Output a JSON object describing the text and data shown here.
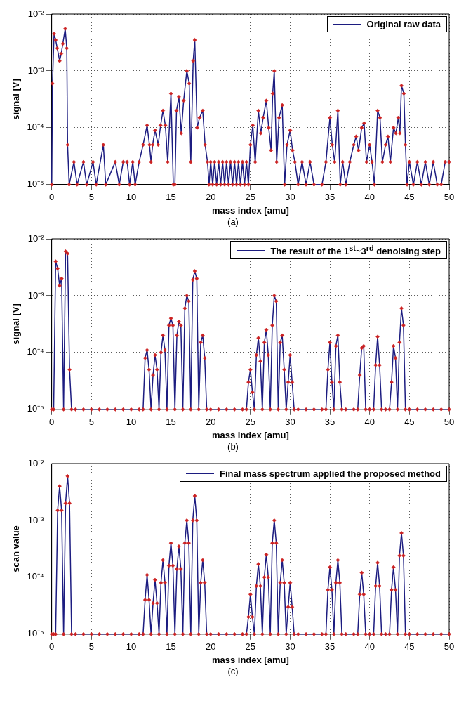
{
  "chart_data": [
    {
      "type": "line",
      "xlabel": "mass index [amu]",
      "ylabel": "signal [V]",
      "annotations": [
        "(a)"
      ],
      "log": "y",
      "grid": true,
      "legend": "top right",
      "marker": "diamond",
      "line_style": "solid",
      "xlim": [
        0,
        50
      ],
      "xticks": [
        0,
        5,
        10,
        15,
        20,
        25,
        30,
        35,
        40,
        45,
        50
      ],
      "ylim": [
        1e-05,
        0.01
      ],
      "yticks": [
        {
          "value": 1e-05,
          "label": "10⁻⁵"
        },
        {
          "value": 0.0001,
          "label": "10⁻⁴"
        },
        {
          "value": 0.001,
          "label": "10⁻³"
        },
        {
          "value": 0.01,
          "label": "10⁻²"
        }
      ],
      "x": [
        0,
        0.1,
        0.3,
        0.5,
        0.7,
        1,
        1.2,
        1.4,
        1.7,
        1.9,
        2,
        2.2,
        2.8,
        3.2,
        4,
        4.4,
        5.2,
        5.6,
        6.5,
        6.8,
        8,
        8.5,
        9,
        9.5,
        9.8,
        10.2,
        10.5,
        11,
        11.5,
        12,
        12.3,
        12.5,
        12.7,
        13,
        13.4,
        13.7,
        14,
        14.3,
        14.6,
        15,
        15.3,
        15.5,
        15.7,
        16,
        16.3,
        16.6,
        17,
        17.3,
        17.5,
        17.8,
        18,
        18.3,
        18.6,
        19,
        19.3,
        19.6,
        19.8,
        20,
        20.25,
        20.5,
        20.75,
        21,
        21.25,
        21.5,
        21.75,
        22,
        22.25,
        22.5,
        22.75,
        23,
        23.25,
        23.5,
        23.75,
        24,
        24.25,
        24.5,
        24.75,
        25,
        25.3,
        25.6,
        26,
        26.3,
        26.6,
        27,
        27.3,
        27.6,
        27.8,
        28,
        28.3,
        28.6,
        29,
        29.3,
        29.6,
        30,
        30.3,
        30.6,
        31,
        31.5,
        32,
        32.5,
        33,
        34,
        34.5,
        35,
        35.3,
        35.6,
        36,
        36.3,
        36.6,
        37,
        37.5,
        38,
        38.3,
        38.6,
        39,
        39.3,
        39.6,
        40,
        40.3,
        40.6,
        41,
        41.3,
        41.6,
        42,
        42.3,
        42.6,
        43,
        43.3,
        43.6,
        43.8,
        44,
        44.3,
        44.5,
        44.7,
        45,
        45.5,
        46,
        46.5,
        47,
        47.5,
        48,
        48.5,
        49,
        49.5,
        50
      ],
      "series": [
        {
          "name": "Original raw data",
          "color": "#1c1c80",
          "colors": [
            "#cc2222",
            "#cc2222",
            "#cc2222",
            "#cc2222",
            "#cc2222",
            "#cc2222",
            "#cc2222",
            "#cc2222",
            "#cc2222",
            "#cc2222",
            "#cc2222",
            "#cc2222",
            "#cc2222",
            "#cc2222",
            "#cc2222",
            "#cc2222",
            "#cc2222",
            "#cc2222",
            "#cc2222",
            "#cc2222",
            "#cc2222",
            "#cc2222",
            "#cc2222",
            "#cc2222",
            "#cc2222",
            "#cc2222",
            "#cc2222",
            "#cc2222",
            "#cc2222",
            "#cc2222",
            "#cc2222",
            "#cc2222",
            "#cc2222",
            "#cc2222",
            "#cc2222",
            "#cc2222",
            "#cc2222",
            "#cc2222",
            "#cc2222",
            "#cc2222",
            "#cc2222",
            "#cc2222",
            "#cc2222",
            "#cc2222",
            "#cc2222",
            "#cc2222",
            "#cc2222",
            "#cc2222",
            "#cc2222",
            "#cc2222",
            "#cc2222",
            "#cc2222",
            "#cc2222",
            "#cc2222",
            "#cc2222",
            "#cc2222",
            "#cc2222",
            "#cc2222",
            "#cc2222",
            "#cc2222",
            "#cc2222",
            "#cc2222",
            "#cc2222",
            "#cc2222",
            "#cc2222",
            "#cc2222",
            "#cc2222",
            "#cc2222",
            "#cc2222",
            "#cc2222",
            "#cc2222",
            "#cc2222",
            "#cc2222",
            "#cc2222",
            "#cc2222",
            "#cc2222",
            "#cc2222",
            "#cc2222",
            "#cc2222",
            "#cc2222",
            "#cc2222",
            "#cc2222",
            "#cc2222",
            "#cc2222",
            "#cc2222",
            "#cc2222",
            "#cc2222",
            "#cc2222",
            "#cc2222",
            "#cc2222",
            "#cc2222",
            "#cc2222",
            "#cc2222",
            "#cc2222",
            "#cc2222",
            "#cc2222",
            "#cc2222",
            "#cc2222",
            "#cc2222",
            "#cc2222",
            "#cc2222",
            "#cc2222",
            "#cc2222",
            "#cc2222",
            "#cc2222",
            "#cc2222",
            "#cc2222",
            "#cc2222",
            "#cc2222",
            "#cc2222",
            "#cc2222",
            "#cc2222",
            "#cc2222",
            "#cc2222",
            "#cc2222",
            "#cc2222",
            "#cc2222",
            "#cc2222",
            "#cc2222",
            "#cc2222",
            "#cc2222",
            "#cc2222",
            "#cc2222",
            "#cc2222",
            "#cc2222",
            "#cc2222",
            "#cc2222",
            "#cc2222",
            "#cc2222",
            "#cc2222",
            "#cc2222",
            "#cc2222",
            "#cc2222",
            "#cc2222",
            "#cc2222",
            "#cc2222",
            "#cc2222",
            "#cc2222",
            "#cc2222",
            "#cc2222",
            "#cc2222",
            "#cc2222",
            "#cc2222",
            "#cc2222",
            "#cc2222"
          ],
          "values": [
            1e-05,
            0.0006,
            0.0045,
            0.0035,
            0.0025,
            0.0015,
            0.002,
            0.003,
            0.0055,
            0.0025,
            5e-05,
            1e-05,
            2.5e-05,
            1e-05,
            2.5e-05,
            1e-05,
            2.5e-05,
            1e-05,
            5e-05,
            1e-05,
            2.5e-05,
            1e-05,
            2.5e-05,
            2.5e-05,
            1e-05,
            2.5e-05,
            1e-05,
            2.5e-05,
            5e-05,
            0.00011,
            5e-05,
            2.5e-05,
            5e-05,
            9e-05,
            5e-05,
            0.00011,
            0.0002,
            0.00011,
            2.5e-05,
            0.0004,
            1e-05,
            1e-05,
            0.0002,
            0.00035,
            8e-05,
            0.0003,
            0.001,
            0.0006,
            2.5e-05,
            0.0015,
            0.0035,
            0.0001,
            0.00015,
            0.0002,
            5e-05,
            2.5e-05,
            1e-05,
            2.5e-05,
            1e-05,
            2.5e-05,
            1e-05,
            2.5e-05,
            1e-05,
            2.5e-05,
            1e-05,
            2.5e-05,
            1e-05,
            2.5e-05,
            1e-05,
            2.5e-05,
            1e-05,
            2.5e-05,
            1e-05,
            2.5e-05,
            1e-05,
            2.5e-05,
            1e-05,
            5e-05,
            0.00011,
            2.5e-05,
            0.0002,
            8e-05,
            0.00015,
            0.0003,
            0.0001,
            4e-05,
            0.0004,
            0.001,
            2.5e-05,
            0.00015,
            0.00025,
            1e-05,
            5e-05,
            9e-05,
            4e-05,
            2.5e-05,
            1e-05,
            2.5e-05,
            1e-05,
            2.5e-05,
            1e-05,
            1e-05,
            2.5e-05,
            0.00015,
            5e-05,
            2.5e-05,
            0.0002,
            1e-05,
            2.5e-05,
            1e-05,
            2.5e-05,
            5e-05,
            7e-05,
            4e-05,
            0.0001,
            0.00012,
            2.5e-05,
            5e-05,
            2.5e-05,
            1e-05,
            0.0002,
            0.00015,
            2.5e-05,
            5e-05,
            7e-05,
            2.5e-05,
            0.0001,
            8e-05,
            0.00015,
            8e-05,
            0.00055,
            0.0004,
            5e-05,
            1e-05,
            2.5e-05,
            1e-05,
            2.5e-05,
            1e-05,
            2.5e-05,
            1e-05,
            2.5e-05,
            1e-05,
            1e-05,
            2.5e-05,
            2.5e-05
          ]
        }
      ]
    },
    {
      "type": "line",
      "xlabel": "mass index [amu]",
      "ylabel": "signal [V]",
      "annotations": [
        "(b)"
      ],
      "log": "y",
      "grid": true,
      "legend": "top right",
      "marker": "diamond",
      "line_style": "solid",
      "xlim": [
        0,
        50
      ],
      "xticks": [
        0,
        5,
        10,
        15,
        20,
        25,
        30,
        35,
        40,
        45,
        50
      ],
      "ylim": [
        1e-05,
        0.01
      ],
      "yticks": [
        {
          "value": 1e-05,
          "label": "10⁻⁵"
        },
        {
          "value": 0.0001,
          "label": "10⁻⁴"
        },
        {
          "value": 0.001,
          "label": "10⁻³"
        },
        {
          "value": 0.01,
          "label": "10⁻²"
        }
      ],
      "x": [
        0,
        0.25,
        0.5,
        0.75,
        1,
        1.25,
        1.5,
        1.75,
        2,
        2.25,
        2.5,
        3,
        4,
        5,
        6,
        7,
        8,
        9,
        10,
        11,
        11.5,
        11.75,
        12,
        12.25,
        12.5,
        12.75,
        13,
        13.25,
        13.5,
        13.75,
        14,
        14.25,
        14.5,
        14.75,
        15,
        15.25,
        15.5,
        15.75,
        16,
        16.25,
        16.5,
        16.75,
        17,
        17.25,
        17.5,
        17.75,
        18,
        18.25,
        18.5,
        18.75,
        19,
        19.25,
        19.5,
        20,
        21,
        22,
        23,
        24,
        24.5,
        24.75,
        25,
        25.25,
        25.5,
        25.75,
        26,
        26.25,
        26.5,
        26.75,
        27,
        27.25,
        27.5,
        27.75,
        28,
        28.25,
        28.5,
        28.75,
        29,
        29.25,
        29.5,
        29.75,
        30,
        30.25,
        30.5,
        31,
        32,
        33,
        34,
        34.5,
        34.75,
        35,
        35.25,
        35.5,
        35.75,
        36,
        36.25,
        36.5,
        37,
        38,
        38.5,
        38.75,
        39,
        39.25,
        39.5,
        40,
        40.5,
        40.75,
        41,
        41.25,
        41.5,
        42,
        42.5,
        42.75,
        43,
        43.25,
        43.5,
        43.75,
        44,
        44.25,
        44.5,
        45,
        46,
        47,
        48,
        49,
        50
      ],
      "series": [
        {
          "name": "The result of the 1$^{st}$~3$^{rd}$ denoising step",
          "color": "#1c1c80",
          "colors": [
            "#cc2222",
            "#cc2222",
            "#cc2222",
            "#cc2222",
            "#cc2222",
            "#cc2222",
            "#cc2222",
            "#cc2222",
            "#cc2222",
            "#cc2222",
            "#cc2222",
            "#cc2222",
            "#cc2222",
            "#cc2222",
            "#cc2222",
            "#cc2222",
            "#cc2222",
            "#cc2222",
            "#cc2222",
            "#cc2222",
            "#cc2222",
            "#cc2222",
            "#cc2222",
            "#cc2222",
            "#cc2222",
            "#cc2222",
            "#cc2222",
            "#cc2222",
            "#cc2222",
            "#cc2222",
            "#cc2222",
            "#cc2222",
            "#cc2222",
            "#cc2222",
            "#cc2222",
            "#cc2222",
            "#cc2222",
            "#cc2222",
            "#cc2222",
            "#cc2222",
            "#cc2222",
            "#cc2222",
            "#cc2222",
            "#cc2222",
            "#cc2222",
            "#cc2222",
            "#cc2222",
            "#cc2222",
            "#cc2222",
            "#cc2222",
            "#cc2222",
            "#cc2222",
            "#cc2222",
            "#cc2222",
            "#cc2222",
            "#cc2222",
            "#cc2222",
            "#cc2222",
            "#cc2222",
            "#cc2222",
            "#cc2222",
            "#cc2222",
            "#cc2222",
            "#cc2222",
            "#cc2222",
            "#cc2222",
            "#cc2222",
            "#cc2222",
            "#cc2222",
            "#cc2222",
            "#cc2222",
            "#cc2222",
            "#cc2222",
            "#cc2222",
            "#cc2222",
            "#cc2222",
            "#cc2222",
            "#cc2222",
            "#cc2222",
            "#cc2222",
            "#cc2222",
            "#cc2222",
            "#cc2222",
            "#cc2222",
            "#cc2222",
            "#cc2222",
            "#cc2222",
            "#cc2222",
            "#cc2222",
            "#cc2222",
            "#cc2222",
            "#cc2222",
            "#cc2222",
            "#cc2222",
            "#cc2222",
            "#cc2222",
            "#cc2222",
            "#cc2222",
            "#cc2222",
            "#cc2222",
            "#cc2222",
            "#cc2222",
            "#cc2222",
            "#cc2222",
            "#cc2222",
            "#cc2222",
            "#cc2222",
            "#cc2222",
            "#cc2222",
            "#cc2222",
            "#cc2222",
            "#cc2222",
            "#cc2222",
            "#cc2222",
            "#cc2222",
            "#cc2222",
            "#cc2222",
            "#cc2222",
            "#cc2222",
            "#cc2222",
            "#cc2222",
            "#cc2222",
            "#cc2222",
            "#cc2222",
            "#cc2222"
          ],
          "values": [
            1e-05,
            1e-05,
            0.004,
            0.003,
            0.0015,
            0.002,
            1e-05,
            0.006,
            0.0055,
            5e-05,
            1e-05,
            1e-05,
            1e-05,
            1e-05,
            1e-05,
            1e-05,
            1e-05,
            1e-05,
            1e-05,
            1e-05,
            1e-05,
            8e-05,
            0.00011,
            5e-05,
            1e-05,
            4e-05,
            9e-05,
            5e-05,
            1e-05,
            0.0001,
            0.0002,
            0.00011,
            1e-05,
            0.0003,
            0.0004,
            0.0003,
            1e-05,
            0.0002,
            0.00035,
            0.0003,
            1e-05,
            0.0006,
            0.001,
            0.0008,
            1e-05,
            0.0019,
            0.0027,
            0.002,
            1e-05,
            0.00015,
            0.0002,
            8e-05,
            1e-05,
            1e-05,
            1e-05,
            1e-05,
            1e-05,
            1e-05,
            1e-05,
            3e-05,
            5e-05,
            2e-05,
            1e-05,
            9e-05,
            0.00018,
            7e-05,
            1e-05,
            0.00015,
            0.00025,
            9e-05,
            1e-05,
            0.0003,
            0.001,
            0.0008,
            1e-05,
            0.00015,
            0.0002,
            5e-05,
            1e-05,
            3e-05,
            9e-05,
            3e-05,
            1e-05,
            1e-05,
            1e-05,
            1e-05,
            1e-05,
            1e-05,
            5e-05,
            0.00015,
            3e-05,
            1e-05,
            0.00013,
            0.0002,
            3e-05,
            1e-05,
            1e-05,
            1e-05,
            1e-05,
            4e-05,
            0.00012,
            0.00013,
            1e-05,
            1e-05,
            1e-05,
            6e-05,
            0.00019,
            6e-05,
            1e-05,
            1e-05,
            1e-05,
            3e-05,
            0.00013,
            8e-05,
            1e-05,
            0.00015,
            0.0006,
            0.0003,
            1e-05,
            1e-05,
            1e-05,
            1e-05,
            1e-05,
            1e-05,
            1e-05
          ]
        }
      ]
    },
    {
      "type": "line",
      "xlabel": "mass index [amu]",
      "ylabel": "scan value",
      "annotations": [
        "(c)"
      ],
      "log": "y",
      "grid": true,
      "legend": "top right",
      "marker": "diamond",
      "line_style": "solid",
      "xlim": [
        0,
        50
      ],
      "xticks": [
        0,
        5,
        10,
        15,
        20,
        25,
        30,
        35,
        40,
        45,
        50
      ],
      "ylim": [
        1e-05,
        0.01
      ],
      "yticks": [
        {
          "value": 1e-05,
          "label": "10⁻⁵"
        },
        {
          "value": 0.0001,
          "label": "10⁻⁴"
        },
        {
          "value": 0.001,
          "label": "10⁻³"
        },
        {
          "value": 0.01,
          "label": "10⁻²"
        }
      ],
      "x": [
        0,
        0.25,
        0.5,
        0.75,
        1,
        1.25,
        1.5,
        1.75,
        2,
        2.25,
        2.5,
        3,
        4,
        5,
        6,
        7,
        8,
        9,
        10,
        11,
        11.5,
        11.75,
        12,
        12.25,
        12.5,
        12.75,
        13,
        13.25,
        13.5,
        13.75,
        14,
        14.25,
        14.5,
        14.75,
        15,
        15.25,
        15.5,
        15.75,
        16,
        16.25,
        16.5,
        16.75,
        17,
        17.25,
        17.5,
        17.75,
        18,
        18.25,
        18.5,
        18.75,
        19,
        19.25,
        19.5,
        20,
        21,
        22,
        23,
        24,
        24.5,
        24.75,
        25,
        25.25,
        25.5,
        25.75,
        26,
        26.25,
        26.5,
        26.75,
        27,
        27.25,
        27.5,
        27.75,
        28,
        28.25,
        28.5,
        28.75,
        29,
        29.25,
        29.5,
        29.75,
        30,
        30.25,
        30.5,
        31,
        32,
        33,
        34,
        34.5,
        34.75,
        35,
        35.25,
        35.5,
        35.75,
        36,
        36.25,
        36.5,
        37,
        38,
        38.5,
        38.75,
        39,
        39.25,
        39.5,
        40,
        40.5,
        40.75,
        41,
        41.25,
        41.5,
        42,
        42.5,
        42.75,
        43,
        43.25,
        43.5,
        43.75,
        44,
        44.25,
        44.5,
        45,
        46,
        47,
        48,
        49,
        50
      ],
      "series": [
        {
          "name": "Final mass spectrum applied the proposed method",
          "color": "#1c1c80",
          "colors": [
            "#cc2222",
            "#cc2222",
            "#cc2222",
            "#cc2222",
            "#cc2222",
            "#cc2222",
            "#cc2222",
            "#cc2222",
            "#cc2222",
            "#cc2222",
            "#cc2222",
            "#cc2222",
            "#cc2222",
            "#cc2222",
            "#cc2222",
            "#cc2222",
            "#cc2222",
            "#cc2222",
            "#cc2222",
            "#cc2222",
            "#cc2222",
            "#cc2222",
            "#cc2222",
            "#cc2222",
            "#cc2222",
            "#cc2222",
            "#cc2222",
            "#cc2222",
            "#cc2222",
            "#cc2222",
            "#cc2222",
            "#cc2222",
            "#cc2222",
            "#cc2222",
            "#cc2222",
            "#cc2222",
            "#cc2222",
            "#cc2222",
            "#cc2222",
            "#cc2222",
            "#cc2222",
            "#cc2222",
            "#cc2222",
            "#cc2222",
            "#cc2222",
            "#cc2222",
            "#cc2222",
            "#cc2222",
            "#cc2222",
            "#cc2222",
            "#cc2222",
            "#cc2222",
            "#cc2222",
            "#cc2222",
            "#cc2222",
            "#cc2222",
            "#cc2222",
            "#cc2222",
            "#cc2222",
            "#cc2222",
            "#cc2222",
            "#cc2222",
            "#cc2222",
            "#cc2222",
            "#cc2222",
            "#cc2222",
            "#cc2222",
            "#cc2222",
            "#cc2222",
            "#cc2222",
            "#cc2222",
            "#cc2222",
            "#cc2222",
            "#cc2222",
            "#cc2222",
            "#cc2222",
            "#cc2222",
            "#cc2222",
            "#cc2222",
            "#cc2222",
            "#cc2222",
            "#cc2222",
            "#cc2222",
            "#cc2222",
            "#cc2222",
            "#cc2222",
            "#cc2222",
            "#cc2222",
            "#cc2222",
            "#cc2222",
            "#cc2222",
            "#cc2222",
            "#cc2222",
            "#cc2222",
            "#cc2222",
            "#cc2222",
            "#cc2222",
            "#cc2222",
            "#cc2222",
            "#cc2222",
            "#cc2222",
            "#cc2222",
            "#cc2222",
            "#cc2222",
            "#cc2222",
            "#cc2222",
            "#cc2222",
            "#cc2222",
            "#cc2222",
            "#cc2222",
            "#cc2222",
            "#cc2222",
            "#cc2222",
            "#cc2222",
            "#cc2222",
            "#cc2222",
            "#cc2222",
            "#cc2222",
            "#cc2222",
            "#cc2222",
            "#cc2222",
            "#cc2222",
            "#cc2222",
            "#cc2222",
            "#cc2222"
          ],
          "values": [
            1e-05,
            1e-05,
            1e-05,
            0.0015,
            0.004,
            0.0015,
            1e-05,
            0.002,
            0.006,
            0.002,
            1e-05,
            1e-05,
            1e-05,
            1e-05,
            1e-05,
            1e-05,
            1e-05,
            1e-05,
            1e-05,
            1e-05,
            1e-05,
            4e-05,
            0.00011,
            4e-05,
            1e-05,
            3.5e-05,
            9e-05,
            3.5e-05,
            1e-05,
            8e-05,
            0.0002,
            8e-05,
            1e-05,
            0.00016,
            0.0004,
            0.00016,
            1e-05,
            0.00014,
            0.00035,
            0.00014,
            1e-05,
            0.0004,
            0.001,
            0.0004,
            1e-05,
            0.001,
            0.0027,
            0.001,
            1e-05,
            8e-05,
            0.0002,
            8e-05,
            1e-05,
            1e-05,
            1e-05,
            1e-05,
            1e-05,
            1e-05,
            1e-05,
            2e-05,
            5e-05,
            2e-05,
            1e-05,
            7e-05,
            0.00017,
            7e-05,
            1e-05,
            0.0001,
            0.00025,
            0.0001,
            1e-05,
            0.0004,
            0.001,
            0.0004,
            1e-05,
            8e-05,
            0.0002,
            8e-05,
            1e-05,
            3e-05,
            8e-05,
            3e-05,
            1e-05,
            1e-05,
            1e-05,
            1e-05,
            1e-05,
            1e-05,
            6e-05,
            0.00015,
            6e-05,
            1e-05,
            8e-05,
            0.0002,
            8e-05,
            1e-05,
            1e-05,
            1e-05,
            1e-05,
            5e-05,
            0.00012,
            5e-05,
            1e-05,
            1e-05,
            1e-05,
            7e-05,
            0.00018,
            7e-05,
            1e-05,
            1e-05,
            1e-05,
            6e-05,
            0.00015,
            6e-05,
            1e-05,
            0.00024,
            0.0006,
            0.00024,
            1e-05,
            1e-05,
            1e-05,
            1e-05,
            1e-05,
            1e-05,
            1e-05
          ]
        }
      ]
    }
  ]
}
